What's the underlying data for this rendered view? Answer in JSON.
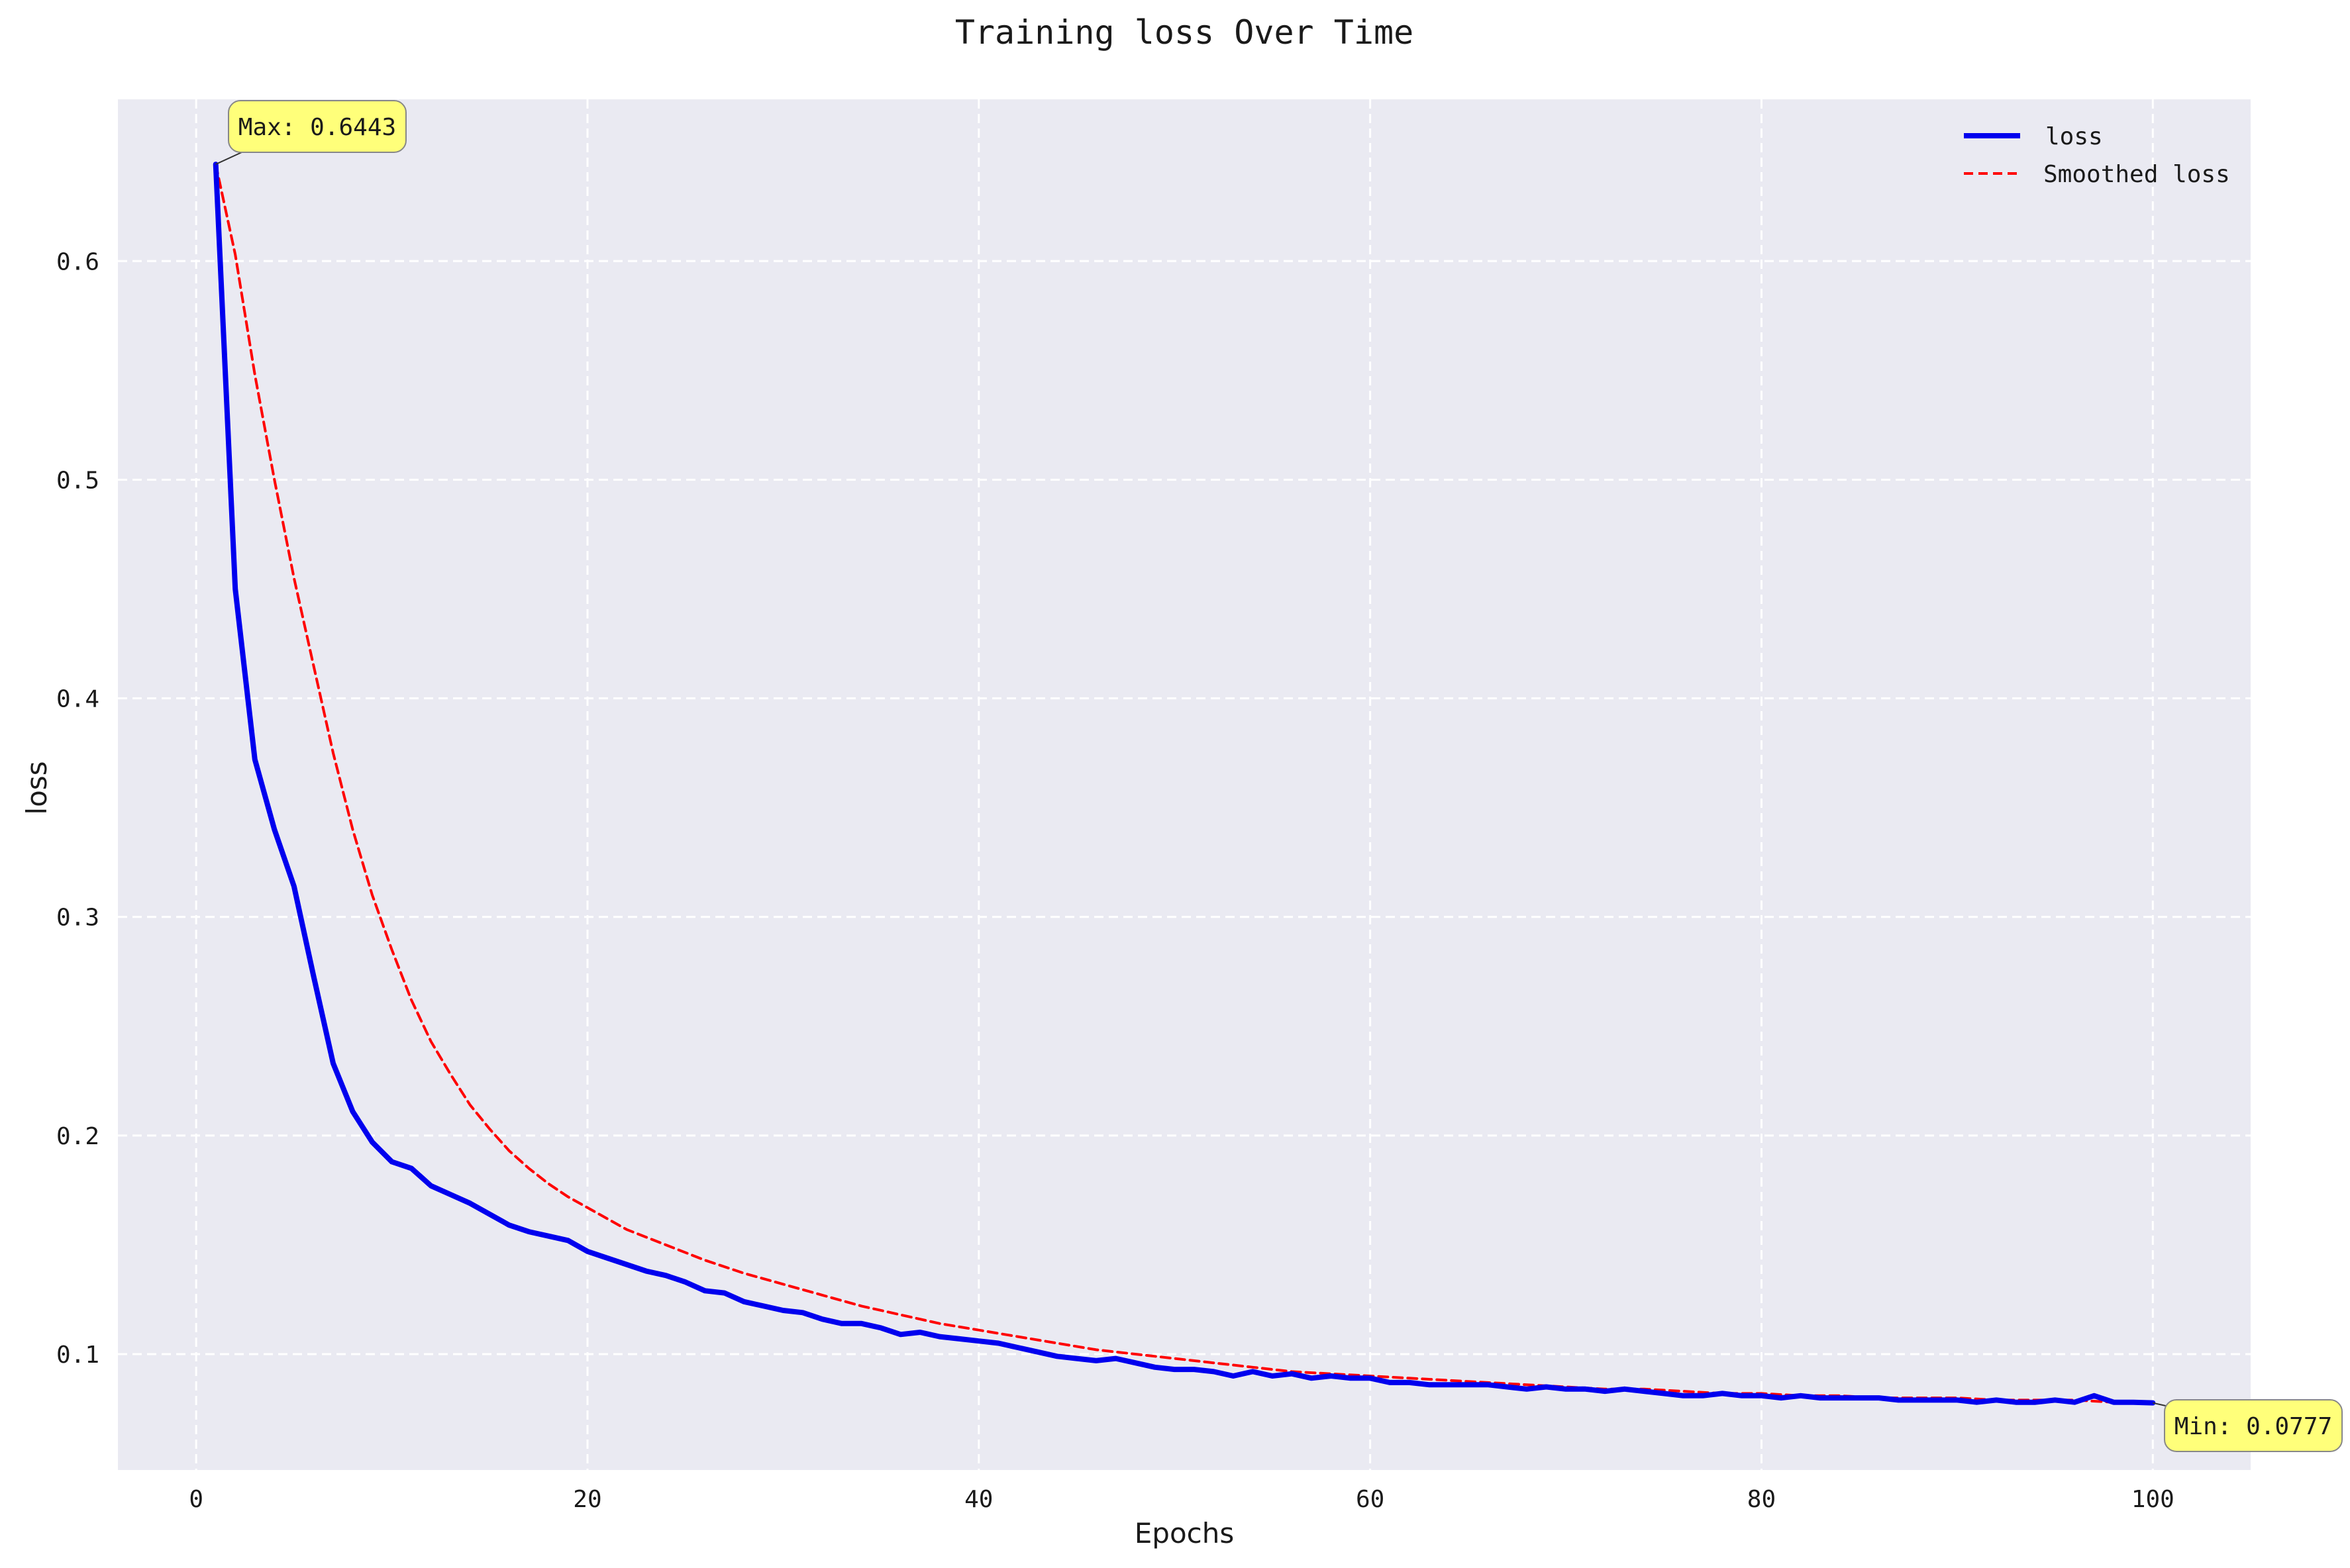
{
  "chart_data": {
    "type": "line",
    "title": "Training loss Over Time",
    "xlabel": "Epochs",
    "ylabel": "loss",
    "xlim": [
      -4,
      105
    ],
    "ylim": [
      0.047,
      0.674
    ],
    "xticks": [
      0,
      20,
      40,
      60,
      80,
      100
    ],
    "yticks": [
      0.1,
      0.2,
      0.3,
      0.4,
      0.5,
      0.6
    ],
    "grid": true,
    "legend_position": "top-right",
    "background_color": "#eaeaf2",
    "series": [
      {
        "name": "loss",
        "color": "#0000ee",
        "style": "solid",
        "x": [
          1,
          2,
          3,
          4,
          5,
          6,
          7,
          8,
          9,
          10,
          11,
          12,
          13,
          14,
          15,
          16,
          17,
          18,
          19,
          20,
          21,
          22,
          23,
          24,
          25,
          26,
          27,
          28,
          29,
          30,
          31,
          32,
          33,
          34,
          35,
          36,
          37,
          38,
          39,
          40,
          41,
          42,
          43,
          44,
          45,
          46,
          47,
          48,
          49,
          50,
          51,
          52,
          53,
          54,
          55,
          56,
          57,
          58,
          59,
          60,
          61,
          62,
          63,
          64,
          65,
          66,
          67,
          68,
          69,
          70,
          71,
          72,
          73,
          74,
          75,
          76,
          77,
          78,
          79,
          80,
          81,
          82,
          83,
          84,
          85,
          86,
          87,
          88,
          89,
          90,
          91,
          92,
          93,
          94,
          95,
          96,
          97,
          98,
          99,
          100
        ],
        "y": [
          0.6443,
          0.45,
          0.372,
          0.34,
          0.314,
          0.273,
          0.233,
          0.211,
          0.197,
          0.188,
          0.185,
          0.177,
          0.173,
          0.169,
          0.164,
          0.159,
          0.156,
          0.154,
          0.152,
          0.147,
          0.144,
          0.141,
          0.138,
          0.136,
          0.133,
          0.129,
          0.128,
          0.124,
          0.122,
          0.12,
          0.119,
          0.116,
          0.114,
          0.114,
          0.112,
          0.109,
          0.11,
          0.108,
          0.107,
          0.106,
          0.105,
          0.103,
          0.101,
          0.099,
          0.098,
          0.097,
          0.098,
          0.096,
          0.094,
          0.093,
          0.093,
          0.092,
          0.09,
          0.092,
          0.09,
          0.091,
          0.089,
          0.09,
          0.089,
          0.089,
          0.087,
          0.087,
          0.086,
          0.086,
          0.086,
          0.086,
          0.085,
          0.084,
          0.085,
          0.084,
          0.084,
          0.083,
          0.084,
          0.083,
          0.082,
          0.081,
          0.081,
          0.082,
          0.081,
          0.081,
          0.08,
          0.081,
          0.08,
          0.08,
          0.08,
          0.08,
          0.079,
          0.079,
          0.079,
          0.079,
          0.078,
          0.079,
          0.078,
          0.078,
          0.079,
          0.078,
          0.081,
          0.078,
          0.078,
          0.0777
        ]
      },
      {
        "name": "Smoothed loss",
        "color": "#ff0000",
        "style": "dashed",
        "x": [
          1,
          2,
          3,
          4,
          5,
          6,
          7,
          8,
          9,
          10,
          11,
          12,
          13,
          14,
          15,
          16,
          17,
          18,
          19,
          20,
          22,
          24,
          26,
          28,
          30,
          32,
          34,
          36,
          38,
          40,
          42,
          44,
          46,
          48,
          50,
          52,
          54,
          56,
          58,
          60,
          62,
          64,
          66,
          68,
          70,
          72,
          74,
          76,
          78,
          80,
          82,
          84,
          86,
          88,
          90,
          92,
          94,
          96,
          98,
          100
        ],
        "y": [
          0.6443,
          0.603,
          0.548,
          0.5,
          0.455,
          0.415,
          0.375,
          0.34,
          0.31,
          0.285,
          0.262,
          0.243,
          0.228,
          0.214,
          0.203,
          0.193,
          0.185,
          0.178,
          0.172,
          0.167,
          0.157,
          0.15,
          0.143,
          0.137,
          0.132,
          0.127,
          0.122,
          0.118,
          0.114,
          0.111,
          0.108,
          0.105,
          0.102,
          0.1,
          0.098,
          0.096,
          0.094,
          0.092,
          0.091,
          0.09,
          0.089,
          0.088,
          0.087,
          0.086,
          0.085,
          0.084,
          0.084,
          0.083,
          0.082,
          0.082,
          0.081,
          0.081,
          0.08,
          0.08,
          0.08,
          0.079,
          0.079,
          0.079,
          0.078,
          0.078
        ]
      }
    ],
    "annotations": [
      {
        "text": "Max: 0.6443",
        "x": 1,
        "y": 0.6443,
        "color": "#ffff7a"
      },
      {
        "text": "Min: 0.0777",
        "x": 100,
        "y": 0.0777,
        "color": "#ffff7a"
      }
    ]
  }
}
